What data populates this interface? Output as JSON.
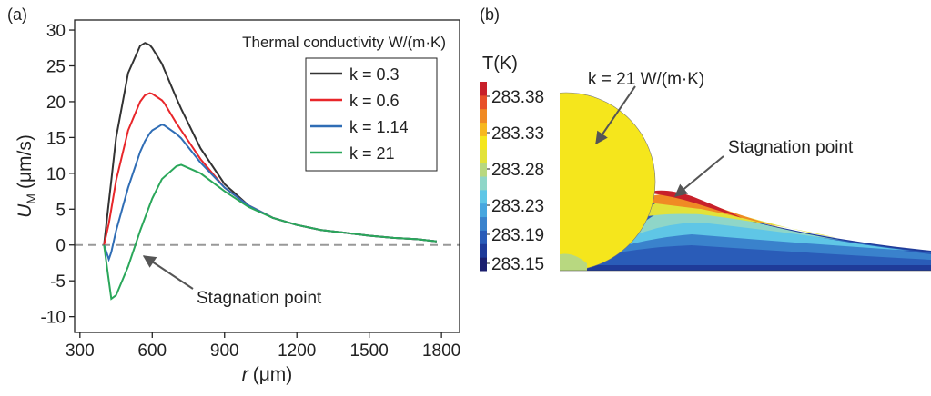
{
  "chart_data": [
    {
      "type": "line",
      "panel_label": "(a)",
      "x_label": {
        "symbol": "r",
        "unit": "(μm)"
      },
      "y_label": {
        "symbol": "U",
        "subscript": "M",
        "unit": "(μm/s)"
      },
      "legend_title": "Thermal conductivity W/(m·K)",
      "legend": "upper right",
      "xlim": [
        278,
        1875
      ],
      "ylim": [
        -12.2,
        31.4
      ],
      "xticks": [
        300,
        600,
        900,
        1200,
        1500,
        1800
      ],
      "yticks": [
        -10,
        -5,
        0,
        5,
        10,
        15,
        20,
        25,
        30
      ],
      "reference_line": {
        "value": 0,
        "color": "#999999",
        "dashed": true
      },
      "annotation": {
        "text": "Stagnation point",
        "x": 440,
        "y": 0
      },
      "x": [
        400,
        420,
        430,
        450,
        500,
        550,
        570,
        590,
        600,
        640,
        650,
        700,
        720,
        800,
        900,
        1000,
        1100,
        1200,
        1300,
        1400,
        1500,
        1600,
        1700,
        1780
      ],
      "series": [
        {
          "name": "k = 0.3",
          "color": "#333333",
          "values": [
            0,
            6,
            9,
            15,
            24,
            27.8,
            28.2,
            27.9,
            27.5,
            25.3,
            24.5,
            20.5,
            19,
            13.5,
            8.5,
            5.5,
            3.8,
            2.8,
            2.1,
            1.7,
            1.3,
            1.0,
            0.8,
            0.5
          ]
        },
        {
          "name": "k = 0.6",
          "color": "#e8262a",
          "values": [
            0,
            3,
            5,
            9,
            16,
            20,
            20.9,
            21.2,
            21.1,
            20.2,
            19.8,
            17,
            16,
            12,
            8,
            5.5,
            3.8,
            2.8,
            2.1,
            1.7,
            1.3,
            1.0,
            0.8,
            0.5
          ]
        },
        {
          "name": "k = 1.14",
          "color": "#2f6db5",
          "values": [
            0,
            -2,
            -1,
            2,
            8,
            13,
            14.5,
            15.6,
            16,
            16.8,
            16.7,
            15.5,
            14.9,
            11.5,
            8,
            5.5,
            3.8,
            2.8,
            2.1,
            1.7,
            1.3,
            1.0,
            0.8,
            0.5
          ]
        },
        {
          "name": "k = 21",
          "color": "#2aa75a",
          "values": [
            0,
            -5,
            -7.5,
            -7,
            -3,
            2,
            3.8,
            5.6,
            6.5,
            9.2,
            9.5,
            11,
            11.2,
            10,
            7.5,
            5.3,
            3.8,
            2.8,
            2.1,
            1.7,
            1.3,
            1.0,
            0.8,
            0.5
          ]
        }
      ]
    },
    {
      "type": "contour",
      "panel_label": "(b)",
      "colorbar_title": "T(K)",
      "clim": [
        283.14,
        283.4
      ],
      "colorbar_ticks": [
        283.38,
        283.33,
        283.28,
        283.23,
        283.19,
        283.15
      ],
      "colormap": [
        "#1b1f6e",
        "#1f3b99",
        "#2a5cb8",
        "#3a82cc",
        "#47a6df",
        "#5fc6e6",
        "#8fd6c8",
        "#b8d880",
        "#e2e23a",
        "#f5e61c",
        "#f7b81e",
        "#f08a24",
        "#e8502a",
        "#c8202a"
      ],
      "annotations": [
        "k = 21 W/(m·K)",
        "Stagnation point"
      ]
    }
  ]
}
